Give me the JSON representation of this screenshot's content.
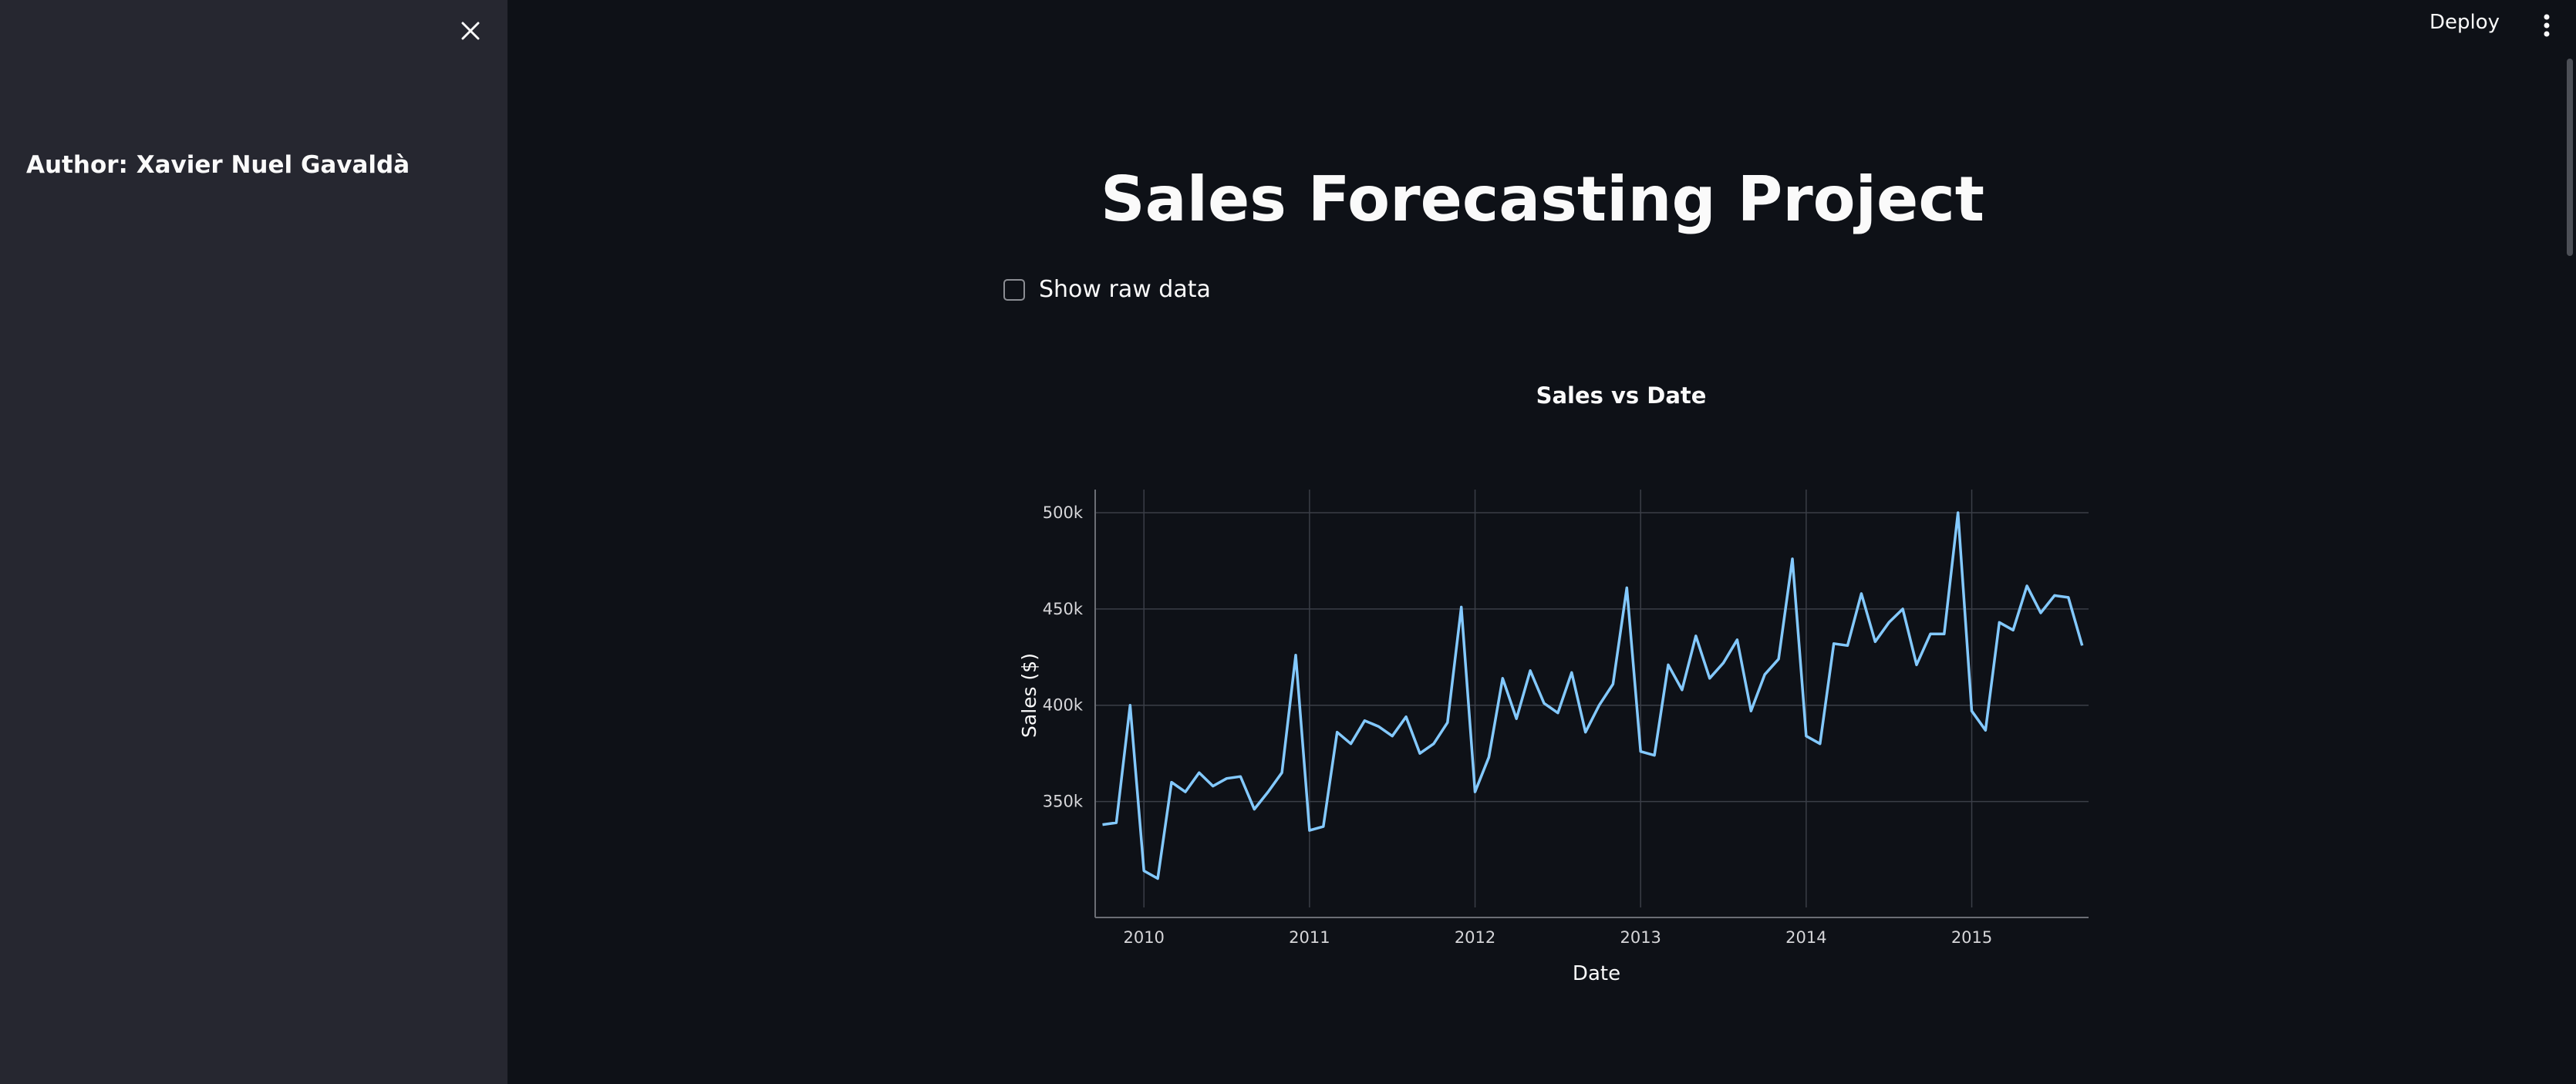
{
  "sidebar": {
    "author": "Author: Xavier Nuel Gavaldà",
    "close_icon": "close-icon"
  },
  "header": {
    "deploy_label": "Deploy",
    "menu_icon": "vertical-dots-icon"
  },
  "main": {
    "title": "Sales Forecasting Project",
    "checkbox_label": "Show raw data",
    "checkbox_checked": false
  },
  "colors": {
    "background": "#0e1117",
    "sidebar": "#262730",
    "line": "#83c9ff",
    "grid": "#3a3e47"
  },
  "chart_data": {
    "type": "line",
    "title": "Sales vs Date",
    "xlabel": "Date",
    "ylabel": "Sales ($)",
    "x_ticks": [
      "2010",
      "2011",
      "2012",
      "2013",
      "2014",
      "2015"
    ],
    "y_ticks": [
      "350k",
      "400k",
      "450k",
      "500k"
    ],
    "y_tick_values": [
      350000,
      400000,
      450000,
      500000
    ],
    "ylim": [
      295000,
      512000
    ],
    "xlim": [
      "2009-09-15",
      "2015-09-15"
    ],
    "grid": true,
    "series": [
      {
        "x": [
          "2009-10",
          "2009-11",
          "2009-12",
          "2010-01",
          "2010-02",
          "2010-03",
          "2010-04",
          "2010-05",
          "2010-06",
          "2010-07",
          "2010-08",
          "2010-09",
          "2010-10",
          "2010-11",
          "2010-12",
          "2011-01",
          "2011-02",
          "2011-03",
          "2011-04",
          "2011-05",
          "2011-06",
          "2011-07",
          "2011-08",
          "2011-09",
          "2011-10",
          "2011-11",
          "2011-12",
          "2012-01",
          "2012-02",
          "2012-03",
          "2012-04",
          "2012-05",
          "2012-06",
          "2012-07",
          "2012-08",
          "2012-09",
          "2012-10",
          "2012-11",
          "2012-12",
          "2013-01",
          "2013-02",
          "2013-03",
          "2013-04",
          "2013-05",
          "2013-06",
          "2013-07",
          "2013-08",
          "2013-09",
          "2013-10",
          "2013-11",
          "2013-12",
          "2014-01",
          "2014-02",
          "2014-03",
          "2014-04",
          "2014-05",
          "2014-06",
          "2014-07",
          "2014-08",
          "2014-09",
          "2014-10",
          "2014-11",
          "2014-12",
          "2015-01",
          "2015-02",
          "2015-03",
          "2015-04",
          "2015-05",
          "2015-06",
          "2015-07",
          "2015-08",
          "2015-09"
        ],
        "values": [
          338000,
          339000,
          400000,
          314000,
          310000,
          360000,
          355000,
          365000,
          358000,
          362000,
          363000,
          346000,
          355000,
          365000,
          426000,
          335000,
          337000,
          386000,
          380000,
          392000,
          389000,
          384000,
          394000,
          375000,
          380000,
          391000,
          451000,
          355000,
          373000,
          414000,
          393000,
          418000,
          401000,
          396000,
          417000,
          386000,
          400000,
          411000,
          461000,
          376000,
          374000,
          421000,
          408000,
          436000,
          414000,
          422000,
          434000,
          397000,
          416000,
          424000,
          476000,
          384000,
          380000,
          432000,
          431000,
          458000,
          433000,
          443000,
          450000,
          421000,
          437000,
          437000,
          500000,
          397000,
          387000,
          443000,
          439000,
          462000,
          448000,
          457000,
          456000,
          431000
        ]
      }
    ]
  }
}
